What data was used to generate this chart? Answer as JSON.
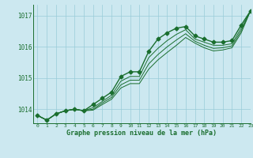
{
  "title": "Graphe pression niveau de la mer (hPa)",
  "background_color": "#cce8f0",
  "grid_color": "#99ccd8",
  "line_color": "#1a6e2e",
  "xlim": [
    -0.5,
    23
  ],
  "ylim": [
    1013.55,
    1017.35
  ],
  "yticks": [
    1014,
    1015,
    1016,
    1017
  ],
  "xticks": [
    0,
    1,
    2,
    3,
    4,
    5,
    6,
    7,
    8,
    9,
    10,
    11,
    12,
    13,
    14,
    15,
    16,
    17,
    18,
    19,
    20,
    21,
    22,
    23
  ],
  "series": [
    {
      "x": [
        0,
        1,
        2,
        3,
        4,
        5,
        6,
        7,
        8,
        9,
        10,
        11,
        12,
        13,
        14,
        15,
        16,
        17,
        18,
        19,
        20,
        21,
        22,
        23
      ],
      "y": [
        1013.8,
        1013.65,
        1013.85,
        1013.95,
        1014.0,
        1013.95,
        1014.15,
        1014.35,
        1014.55,
        1015.05,
        1015.2,
        1015.2,
        1015.85,
        1016.25,
        1016.45,
        1016.6,
        1016.65,
        1016.35,
        1016.25,
        1016.15,
        1016.15,
        1016.2,
        1016.7,
        1017.15
      ],
      "marker": "D",
      "markersize": 2.5,
      "linewidth": 1.0
    },
    {
      "x": [
        0,
        1,
        2,
        3,
        4,
        5,
        6,
        7,
        8,
        9,
        10,
        11,
        12,
        13,
        14,
        15,
        16,
        17,
        18,
        19,
        20,
        21,
        22,
        23
      ],
      "y": [
        1013.8,
        1013.65,
        1013.85,
        1013.95,
        1014.0,
        1013.95,
        1014.05,
        1014.25,
        1014.45,
        1014.9,
        1015.05,
        1015.05,
        1015.65,
        1015.95,
        1016.2,
        1016.4,
        1016.55,
        1016.25,
        1016.15,
        1016.05,
        1016.05,
        1016.1,
        1016.6,
        1017.15
      ],
      "marker": null,
      "linewidth": 0.7
    },
    {
      "x": [
        0,
        1,
        2,
        3,
        4,
        5,
        6,
        7,
        8,
        9,
        10,
        11,
        12,
        13,
        14,
        15,
        16,
        17,
        18,
        19,
        20,
        21,
        22,
        23
      ],
      "y": [
        1013.8,
        1013.65,
        1013.85,
        1013.95,
        1014.0,
        1013.95,
        1014.0,
        1014.2,
        1014.38,
        1014.78,
        1014.93,
        1014.93,
        1015.45,
        1015.75,
        1016.0,
        1016.22,
        1016.42,
        1016.18,
        1016.05,
        1015.95,
        1015.97,
        1016.03,
        1016.52,
        1017.15
      ],
      "marker": null,
      "linewidth": 0.7
    },
    {
      "x": [
        0,
        1,
        2,
        3,
        4,
        5,
        6,
        7,
        8,
        9,
        10,
        11,
        12,
        13,
        14,
        15,
        16,
        17,
        18,
        19,
        20,
        21,
        22,
        23
      ],
      "y": [
        1013.8,
        1013.65,
        1013.85,
        1013.95,
        1014.0,
        1013.95,
        1013.97,
        1014.15,
        1014.32,
        1014.68,
        1014.82,
        1014.82,
        1015.28,
        1015.58,
        1015.82,
        1016.05,
        1016.3,
        1016.12,
        1015.97,
        1015.87,
        1015.9,
        1015.97,
        1016.45,
        1017.15
      ],
      "marker": null,
      "linewidth": 0.7
    }
  ]
}
